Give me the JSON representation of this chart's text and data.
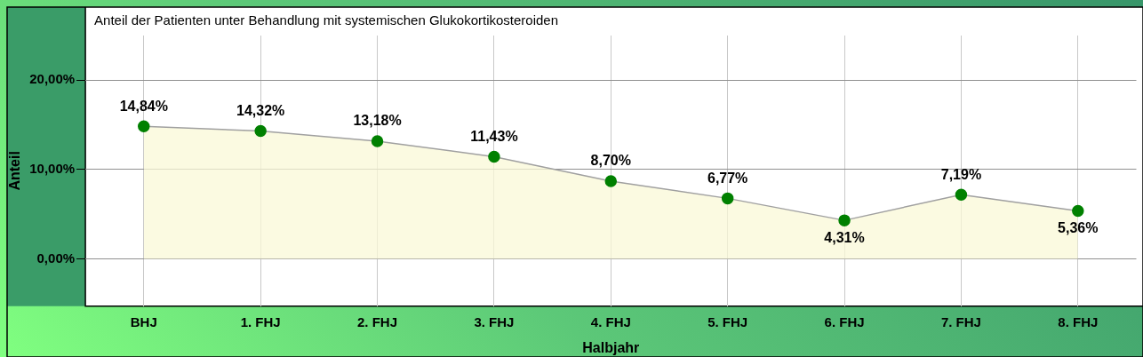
{
  "chart_data": {
    "type": "area",
    "title": "Anteil der Patienten unter Behandlung mit systemischen Glukokortikosteroiden",
    "xlabel": "Halbjahr",
    "ylabel": "Anteil",
    "categories": [
      "BHJ",
      "1. FHJ",
      "2. FHJ",
      "3. FHJ",
      "4. FHJ",
      "5. FHJ",
      "6. FHJ",
      "7. FHJ",
      "8. FHJ"
    ],
    "series": [
      {
        "color": "#008000",
        "values": [
          14.84,
          14.32,
          13.18,
          11.43,
          8.7,
          6.77,
          4.31,
          7.19,
          5.36
        ]
      }
    ],
    "value_labels": [
      "14,84%",
      "14,32%",
      "13,18%",
      "11,43%",
      "8,70%",
      "6,77%",
      "4,31%",
      "7,19%",
      "5,36%"
    ],
    "ylim": [
      -5.3,
      25
    ],
    "yticks": [
      {
        "value": 0,
        "label": "0,00%"
      },
      {
        "value": 10,
        "label": "10,00%"
      },
      {
        "value": 20,
        "label": "20,00%"
      }
    ],
    "grid": true,
    "legend": false,
    "marker": "circle",
    "line_style": "solid"
  }
}
